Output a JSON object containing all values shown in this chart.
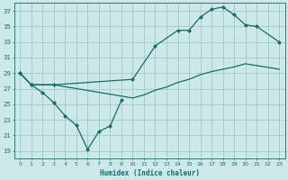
{
  "xlabel": "Humidex (Indice chaleur)",
  "bg_color": "#cce8e8",
  "grid_color": "#aacccc",
  "line_color": "#1a6b6b",
  "xlim": [
    -0.5,
    23.5
  ],
  "ylim": [
    18,
    38
  ],
  "yticks": [
    19,
    21,
    23,
    25,
    27,
    29,
    31,
    33,
    35,
    37
  ],
  "xticks": [
    0,
    1,
    2,
    3,
    4,
    5,
    6,
    7,
    8,
    9,
    10,
    11,
    12,
    13,
    14,
    15,
    16,
    17,
    18,
    19,
    20,
    21,
    22,
    23
  ],
  "curve1_x": [
    0,
    1,
    2,
    3,
    4,
    5,
    6,
    7,
    8,
    9
  ],
  "curve1_y": [
    29,
    27.5,
    26.5,
    25.2,
    23.5,
    22.3,
    19.2,
    21.5,
    22.2,
    25.5
  ],
  "curve2_x": [
    0,
    1,
    3,
    10,
    12,
    14,
    15,
    16,
    17,
    18,
    19,
    20,
    21,
    23
  ],
  "curve2_y": [
    29,
    27.5,
    27.5,
    28.2,
    32.5,
    34.5,
    34.5,
    36.2,
    37.2,
    37.5,
    36.5,
    35.2,
    35.0,
    33.0
  ],
  "curve3_x": [
    0,
    1,
    3,
    10,
    11,
    12,
    13,
    14,
    15,
    16,
    17,
    18,
    19,
    20,
    23
  ],
  "curve3_y": [
    29,
    27.5,
    27.5,
    25.8,
    26.2,
    26.8,
    27.2,
    27.8,
    28.2,
    28.8,
    29.2,
    29.5,
    29.8,
    30.2,
    29.5
  ]
}
